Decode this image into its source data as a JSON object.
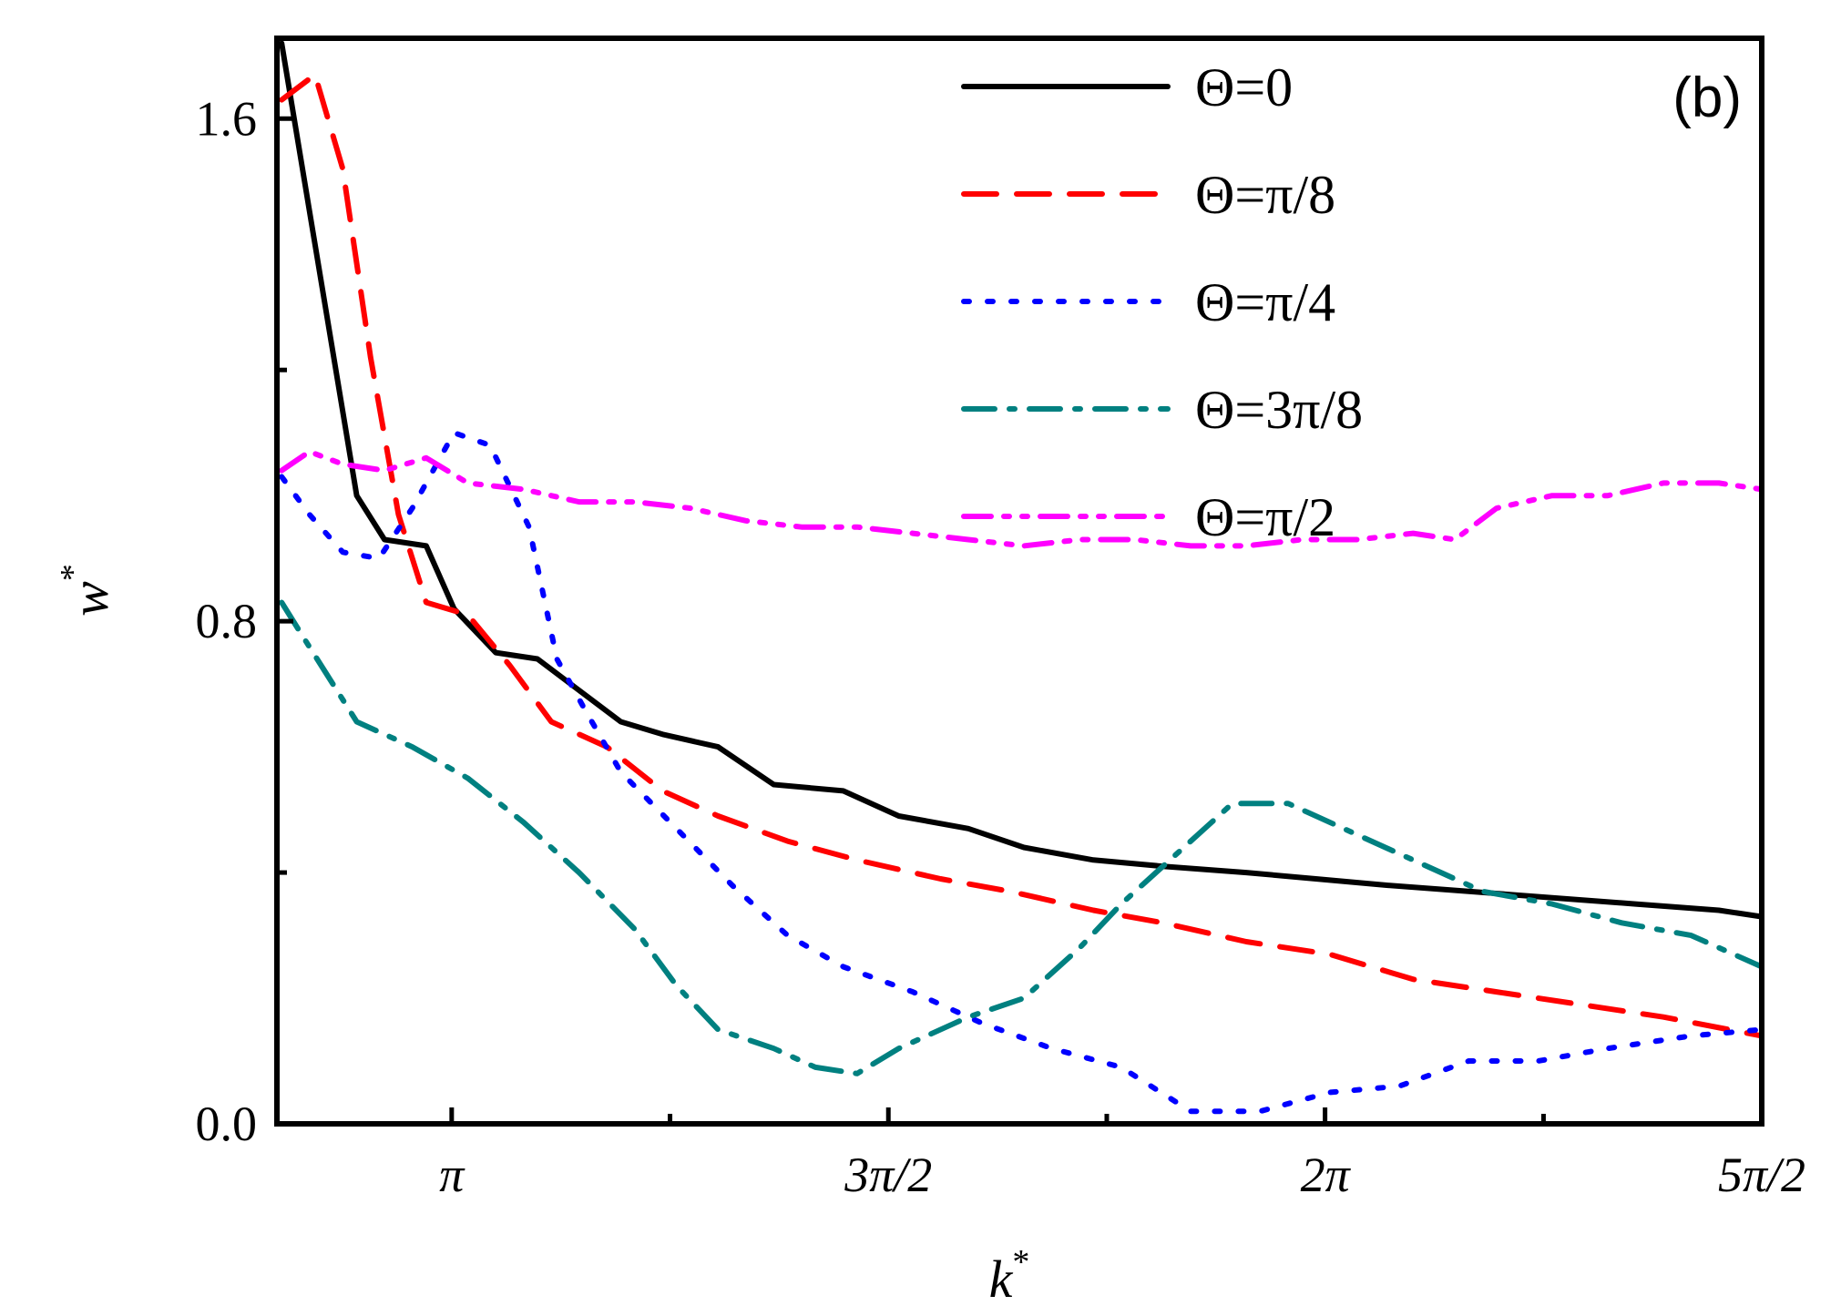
{
  "chart_data": {
    "type": "line",
    "title": "",
    "panel_label": "(b)",
    "xlabel": "k",
    "xlabel_sup": "*",
    "ylabel": "w",
    "ylabel_sup": "*",
    "xlim": [
      2.513,
      7.854
    ],
    "ylim": [
      0.0,
      1.728
    ],
    "xticks": [
      {
        "value": 3.1416,
        "label": "π"
      },
      {
        "value": 4.7124,
        "label": "3π/2"
      },
      {
        "value": 6.2832,
        "label": "2π"
      },
      {
        "value": 7.854,
        "label": "5π/2"
      }
    ],
    "xticks_minor": [
      3.927,
      5.498,
      7.069
    ],
    "yticks": [
      {
        "value": 0.0,
        "label": "0.0"
      },
      {
        "value": 0.8,
        "label": "0.8"
      },
      {
        "value": 1.6,
        "label": "1.6"
      }
    ],
    "yticks_minor": [
      0.4,
      1.2
    ],
    "legend_position": "top-right",
    "series": [
      {
        "name": "Θ=0",
        "color": "#000000",
        "dash": "solid",
        "x": [
          2.53,
          2.65,
          2.8,
          2.9,
          3.05,
          3.15,
          3.3,
          3.45,
          3.6,
          3.75,
          3.9,
          4.1,
          4.3,
          4.55,
          4.75,
          5.0,
          5.2,
          5.45,
          5.7,
          6.0,
          6.25,
          6.5,
          6.8,
          7.1,
          7.4,
          7.7,
          7.85
        ],
        "y": [
          1.72,
          1.4,
          1.0,
          0.93,
          0.92,
          0.82,
          0.75,
          0.74,
          0.69,
          0.64,
          0.62,
          0.6,
          0.54,
          0.53,
          0.49,
          0.47,
          0.44,
          0.42,
          0.41,
          0.4,
          0.39,
          0.38,
          0.37,
          0.36,
          0.35,
          0.34,
          0.33
        ]
      },
      {
        "name": "Θ=π/8",
        "color": "#ff0000",
        "dash": "dashed",
        "x": [
          2.53,
          2.65,
          2.75,
          2.85,
          2.95,
          3.05,
          3.2,
          3.35,
          3.5,
          3.7,
          3.9,
          4.1,
          4.35,
          4.6,
          4.9,
          5.15,
          5.45,
          5.7,
          6.0,
          6.3,
          6.6,
          6.9,
          7.2,
          7.5,
          7.854
        ],
        "y": [
          1.63,
          1.67,
          1.52,
          1.22,
          0.97,
          0.83,
          0.81,
          0.73,
          0.64,
          0.6,
          0.53,
          0.49,
          0.45,
          0.42,
          0.39,
          0.37,
          0.34,
          0.32,
          0.29,
          0.27,
          0.23,
          0.21,
          0.19,
          0.17,
          0.14
        ]
      },
      {
        "name": "Θ=π/4",
        "color": "#0000ff",
        "dash": "dotted",
        "x": [
          2.53,
          2.63,
          2.75,
          2.88,
          3.0,
          3.15,
          3.28,
          3.42,
          3.52,
          3.62,
          3.75,
          3.95,
          4.15,
          4.35,
          4.55,
          4.8,
          5.05,
          5.3,
          5.55,
          5.8,
          6.05,
          6.3,
          6.55,
          6.8,
          7.05,
          7.3,
          7.6,
          7.854
        ],
        "y": [
          1.03,
          0.97,
          0.91,
          0.9,
          0.98,
          1.1,
          1.08,
          0.95,
          0.74,
          0.66,
          0.56,
          0.47,
          0.38,
          0.3,
          0.25,
          0.21,
          0.16,
          0.12,
          0.09,
          0.02,
          0.02,
          0.05,
          0.06,
          0.1,
          0.1,
          0.12,
          0.14,
          0.15
        ]
      },
      {
        "name": "Θ=3π/8",
        "color": "#008080",
        "dash": "dashdot",
        "x": [
          2.53,
          2.6,
          2.8,
          3.0,
          3.2,
          3.4,
          3.6,
          3.8,
          3.95,
          4.1,
          4.3,
          4.45,
          4.6,
          4.75,
          5.0,
          5.2,
          5.4,
          5.55,
          5.75,
          5.95,
          6.15,
          6.35,
          6.6,
          6.85,
          7.1,
          7.35,
          7.6,
          7.854
        ],
        "y": [
          0.83,
          0.78,
          0.64,
          0.6,
          0.55,
          0.48,
          0.4,
          0.31,
          0.22,
          0.15,
          0.12,
          0.09,
          0.08,
          0.12,
          0.17,
          0.2,
          0.28,
          0.35,
          0.43,
          0.51,
          0.51,
          0.47,
          0.42,
          0.37,
          0.35,
          0.32,
          0.3,
          0.25
        ]
      },
      {
        "name": "Θ=π/2",
        "color": "#ff00ff",
        "dash": "dashdotdot",
        "x": [
          2.53,
          2.63,
          2.75,
          2.9,
          3.05,
          3.2,
          3.4,
          3.6,
          3.8,
          4.0,
          4.2,
          4.4,
          4.6,
          4.8,
          5.0,
          5.2,
          5.4,
          5.6,
          5.8,
          6.0,
          6.2,
          6.4,
          6.6,
          6.75,
          6.9,
          7.1,
          7.3,
          7.5,
          7.7,
          7.854
        ],
        "y": [
          1.04,
          1.07,
          1.05,
          1.04,
          1.06,
          1.02,
          1.01,
          0.99,
          0.99,
          0.98,
          0.96,
          0.95,
          0.95,
          0.94,
          0.93,
          0.92,
          0.93,
          0.93,
          0.92,
          0.92,
          0.93,
          0.93,
          0.94,
          0.93,
          0.98,
          1.0,
          1.0,
          1.02,
          1.02,
          1.01
        ]
      }
    ]
  }
}
